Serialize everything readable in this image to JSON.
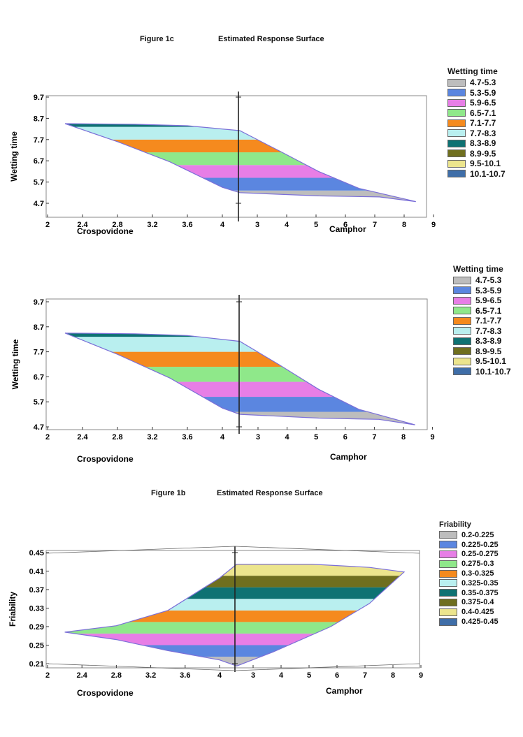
{
  "figure_1c_caption": "Figure 1c",
  "figure_1c_heading": "Estimated Response Surface",
  "figure_1b_caption": "Figure 1b",
  "figure_1b_heading": "Estimated Response Surface",
  "colors": {
    "bands": [
      "#bdbdbd",
      "#5b86e0",
      "#e77ee6",
      "#8fe88a",
      "#f58a1e",
      "#b9efef",
      "#0e7273",
      "#6f6f1f",
      "#ece58d",
      "#3f6ea8"
    ],
    "outline": "#7b6fd8"
  },
  "chart_data": [
    {
      "type": "contour",
      "title": "",
      "ylabel": "Wetting time",
      "x_left_label": "Crospovidone",
      "x_right_label": "Camphor",
      "x_left_ticks": [
        "2",
        "2.4",
        "2.8",
        "3.2",
        "3.6",
        "4"
      ],
      "x_right_ticks": [
        "3",
        "4",
        "5",
        "6",
        "7",
        "8",
        "9"
      ],
      "y_ticks": [
        "9.7",
        "8.7",
        "7.7",
        "6.7",
        "5.7",
        "4.7"
      ],
      "ylim": [
        4.5,
        9.9
      ],
      "x_left_range": [
        2,
        4.2
      ],
      "x_right_range": [
        2.6,
        9
      ],
      "legend_title": "Wetting time",
      "legend": [
        "4.7-5.3",
        "5.3-5.9",
        "5.9-6.5",
        "6.5-7.1",
        "7.1-7.7",
        "7.7-8.3",
        "8.3-8.9",
        "8.9-9.5",
        "9.5-10.1",
        "10.1-10.7"
      ],
      "band_edges": [
        4.7,
        5.3,
        5.9,
        6.5,
        7.1,
        7.7,
        8.3,
        8.9,
        9.5,
        10.1,
        10.7
      ],
      "region_top": [
        [
          2.2,
          8.45
        ],
        [
          3.0,
          8.42
        ],
        [
          3.6,
          8.35
        ],
        [
          4.2,
          8.12
        ],
        [
          5.0,
          7.2
        ],
        [
          6.0,
          6.2
        ],
        [
          7.0,
          5.4
        ],
        [
          8.4,
          4.78
        ]
      ],
      "region_bottom": [
        [
          2.2,
          8.45
        ],
        [
          2.8,
          7.6
        ],
        [
          3.4,
          6.65
        ],
        [
          4.0,
          5.45
        ],
        [
          4.2,
          5.2
        ],
        [
          6.0,
          5.05
        ],
        [
          7.5,
          5.0
        ],
        [
          8.4,
          4.78
        ]
      ]
    },
    {
      "type": "contour",
      "title": "",
      "ylabel": "Wetting time",
      "x_left_label": "Crospovidone",
      "x_right_label": "Camphor",
      "x_left_ticks": [
        "2",
        "2.4",
        "2.8",
        "3.2",
        "3.6",
        "4"
      ],
      "x_right_ticks": [
        "3",
        "4",
        "5",
        "6",
        "7",
        "8",
        "9"
      ],
      "y_ticks": [
        "9.7",
        "8.7",
        "7.7",
        "6.7",
        "5.7",
        "4.7"
      ],
      "ylim": [
        4.5,
        9.9
      ],
      "x_left_range": [
        2,
        4.2
      ],
      "x_right_range": [
        2.6,
        9
      ],
      "legend_title": "Wetting time",
      "legend": [
        "4.7-5.3",
        "5.3-5.9",
        "5.9-6.5",
        "6.5-7.1",
        "7.1-7.7",
        "7.7-8.3",
        "8.3-8.9",
        "8.9-9.5",
        "9.5-10.1",
        "10.1-10.7"
      ],
      "band_edges": [
        4.7,
        5.3,
        5.9,
        6.5,
        7.1,
        7.7,
        8.3,
        8.9,
        9.5,
        10.1,
        10.7
      ],
      "region_top": [
        [
          2.2,
          8.45
        ],
        [
          3.0,
          8.42
        ],
        [
          3.6,
          8.35
        ],
        [
          4.2,
          8.12
        ],
        [
          5.0,
          7.2
        ],
        [
          6.0,
          6.2
        ],
        [
          7.0,
          5.4
        ],
        [
          8.4,
          4.78
        ]
      ],
      "region_bottom": [
        [
          2.2,
          8.45
        ],
        [
          2.8,
          7.6
        ],
        [
          3.4,
          6.65
        ],
        [
          4.0,
          5.45
        ],
        [
          4.2,
          5.2
        ],
        [
          6.0,
          5.05
        ],
        [
          7.5,
          5.0
        ],
        [
          8.4,
          4.78
        ]
      ]
    },
    {
      "type": "contour",
      "title": "",
      "ylabel": "Friability",
      "x_left_label": "Crospovidone",
      "x_right_label": "Camphor",
      "x_left_ticks": [
        "2",
        "2.4",
        "2.8",
        "3.2",
        "3.6",
        "4"
      ],
      "x_right_ticks": [
        "3",
        "4",
        "5",
        "6",
        "7",
        "8",
        "9"
      ],
      "y_ticks": [
        "0.45",
        "0.41",
        "0.37",
        "0.33",
        "0.29",
        "0.25",
        "0.21"
      ],
      "ylim": [
        0.205,
        0.455
      ],
      "x_left_range": [
        2,
        4.2
      ],
      "x_right_range": [
        2.6,
        9
      ],
      "legend_title": "Friability",
      "legend": [
        "0.2-0.225",
        "0.225-0.25",
        "0.25-0.275",
        "0.275-0.3",
        "0.3-0.325",
        "0.325-0.35",
        "0.35-0.375",
        "0.375-0.4",
        "0.4-0.425",
        "0.425-0.45"
      ],
      "band_edges": [
        0.2,
        0.225,
        0.25,
        0.275,
        0.3,
        0.325,
        0.35,
        0.375,
        0.4,
        0.425,
        0.45
      ],
      "region_top": [
        [
          2.2,
          0.278
        ],
        [
          2.8,
          0.292
        ],
        [
          3.4,
          0.325
        ],
        [
          4.0,
          0.395
        ],
        [
          4.2,
          0.425
        ],
        [
          6.0,
          0.425
        ],
        [
          7.5,
          0.418
        ],
        [
          8.4,
          0.408
        ]
      ],
      "region_bottom": [
        [
          2.2,
          0.278
        ],
        [
          2.8,
          0.262
        ],
        [
          3.4,
          0.238
        ],
        [
          4.0,
          0.218
        ],
        [
          4.2,
          0.205
        ],
        [
          5.0,
          0.235
        ],
        [
          6.5,
          0.29
        ],
        [
          7.5,
          0.34
        ],
        [
          8.4,
          0.408
        ]
      ]
    }
  ]
}
